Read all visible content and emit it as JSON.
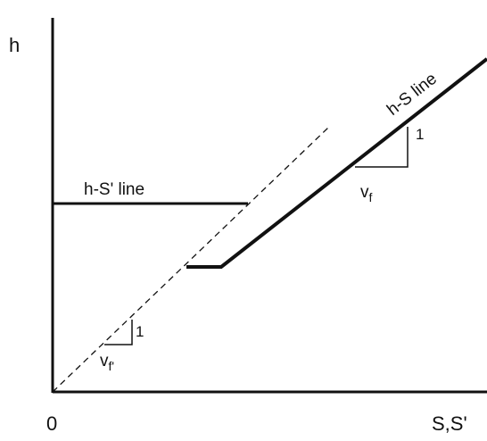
{
  "axes": {
    "y_label": "h",
    "x_label": "S,S'",
    "origin_label": "0"
  },
  "lines": {
    "h_s_label": "h-S line",
    "h_s_prime_label": "h-S' line"
  },
  "slopes": {
    "upper": {
      "run_label": "v",
      "run_subscript": "f",
      "rise_label": "1"
    },
    "lower": {
      "run_label": "v",
      "run_subscript": "f'",
      "rise_label": "1"
    }
  },
  "colors": {
    "ink": "#111111",
    "background": "#ffffff"
  }
}
